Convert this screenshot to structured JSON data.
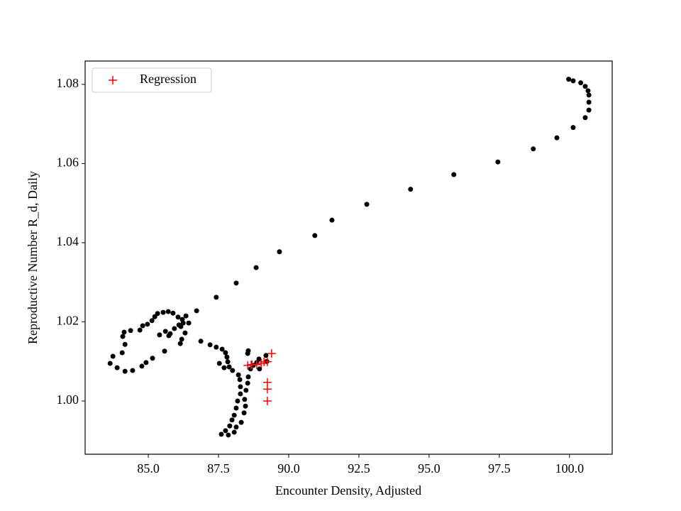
{
  "chart_data": {
    "type": "scatter",
    "x_label": "Encounter Density, Adjusted",
    "y_label": "Reproductive Number R_d, Daily",
    "xlim": [
      82.75,
      101.52
    ],
    "ylim": [
      0.98655,
      1.0859
    ],
    "xticks": [
      {
        "value": 85,
        "label": "85.0"
      },
      {
        "value": 87.5,
        "label": "87.5"
      },
      {
        "value": 90,
        "label": "90.0"
      },
      {
        "value": 92.5,
        "label": "92.5"
      },
      {
        "value": 95,
        "label": "95.0"
      },
      {
        "value": 97.5,
        "label": "97.5"
      },
      {
        "value": 100,
        "label": "100.0"
      }
    ],
    "yticks": [
      {
        "value": 1.0,
        "label": "1.00"
      },
      {
        "value": 1.02,
        "label": "1.02"
      },
      {
        "value": 1.04,
        "label": "1.04"
      },
      {
        "value": 1.06,
        "label": "1.06"
      },
      {
        "value": 1.08,
        "label": "1.08"
      }
    ],
    "legend": "upper left",
    "series": [
      {
        "color": "#000000",
        "marker": "o",
        "x": [
          99.97,
          100.13,
          100.4,
          100.56,
          100.66,
          100.69,
          100.69,
          100.69,
          100.56,
          100.13,
          99.55,
          98.71,
          97.45,
          95.88,
          94.34,
          92.78,
          91.54,
          90.93,
          89.67,
          88.84,
          88.13,
          87.42,
          86.72,
          86.34,
          86.21,
          86.24,
          86.16,
          86.19,
          86.14,
          86.31,
          86.44,
          86.06,
          85.88,
          85.71,
          85.53,
          85.33,
          85.23,
          85.13,
          84.97,
          84.8,
          84.7,
          84.37,
          84.14,
          84.09,
          84.17,
          84.07,
          83.74,
          83.64,
          83.89,
          84.17,
          84.44,
          84.77,
          84.92,
          85.15,
          85.58,
          85.4,
          85.61,
          85.78,
          85.93,
          86.09,
          85.73,
          86.87,
          87.2,
          87.42,
          87.63,
          87.75,
          87.8,
          87.83,
          87.88,
          88.0,
          88.21,
          88.26,
          88.28,
          88.28,
          88.18,
          88.13,
          88.06,
          87.98,
          87.9,
          87.75,
          87.6,
          87.85,
          88.06,
          88.13,
          88.31,
          88.41,
          88.46,
          88.43,
          88.48,
          88.54,
          88.56,
          88.64,
          88.74,
          88.86,
          88.94,
          89.19,
          89.22,
          88.96,
          88.54,
          88.56,
          87.53,
          87.7
        ],
        "values": [
          1.0813,
          1.0809,
          1.0804,
          1.0795,
          1.0784,
          1.0773,
          1.0755,
          1.0735,
          1.0716,
          1.0691,
          1.0665,
          1.0637,
          1.0604,
          1.0572,
          1.0535,
          1.0497,
          1.0457,
          1.0418,
          1.0377,
          1.0337,
          1.0298,
          1.0262,
          1.0228,
          1.0215,
          1.0206,
          1.0197,
          1.0188,
          1.0156,
          1.0145,
          1.0172,
          1.0197,
          1.0212,
          1.0222,
          1.0226,
          1.0224,
          1.0221,
          1.0213,
          1.0203,
          1.0194,
          1.019,
          1.0179,
          1.0178,
          1.0174,
          1.0163,
          1.0143,
          1.0122,
          1.0113,
          1.0095,
          1.0084,
          1.0075,
          1.0077,
          1.0088,
          1.0097,
          1.0108,
          1.0126,
          1.0167,
          1.0176,
          1.017,
          1.0183,
          1.0192,
          1.0165,
          1.0151,
          1.0142,
          1.0136,
          1.0131,
          1.0122,
          1.0111,
          1.0099,
          1.0086,
          1.0077,
          1.0066,
          1.0054,
          1.0036,
          1.0018,
          1.0,
          0.9982,
          0.9964,
          0.9952,
          0.9937,
          0.9925,
          0.9916,
          0.9914,
          0.9921,
          0.9934,
          0.9946,
          0.997,
          0.9987,
          1.0004,
          1.0027,
          1.0045,
          1.0061,
          1.0081,
          1.009,
          1.0097,
          1.0106,
          1.0115,
          1.01,
          1.0081,
          1.012,
          1.0127,
          1.0095,
          1.0084
        ]
      },
      {
        "name": "Regression",
        "color": "#ff0000",
        "marker": "+",
        "x": [
          89.39,
          89.24,
          89.12,
          89.02,
          88.86,
          88.69,
          88.54,
          89.24,
          89.24,
          89.24,
          88.66
        ],
        "values": [
          1.012,
          1.0099,
          1.0099,
          1.0095,
          1.0092,
          1.0092,
          1.009,
          1.0047,
          1.003,
          1.0,
          1.0091
        ]
      }
    ]
  }
}
